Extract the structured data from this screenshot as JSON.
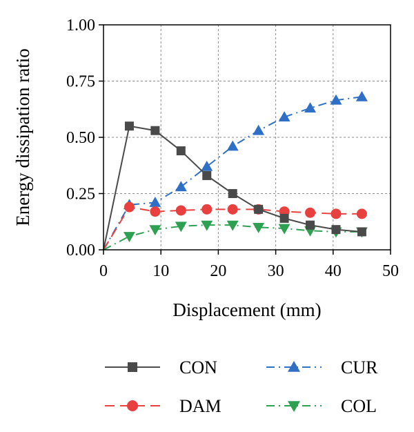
{
  "chart_data": {
    "type": "line",
    "title": "",
    "xlabel": "Displacement (mm)",
    "ylabel": "Energy dissipation ratio",
    "xlim": [
      0,
      50
    ],
    "ylim": [
      0,
      1.0
    ],
    "grid": true,
    "legend_position": "bottom",
    "x_ticks": [
      "0",
      "10",
      "20",
      "30",
      "40",
      "50"
    ],
    "y_ticks": [
      "0.00",
      "0.25",
      "0.50",
      "0.75",
      "1.00"
    ],
    "series": [
      {
        "name": "CON",
        "color": "#4a4a4a",
        "marker": "square",
        "line_style": "solid",
        "x": [
          0,
          4.5,
          9,
          13.5,
          18,
          22.5,
          27,
          31.5,
          36,
          40.5,
          45
        ],
        "y": [
          0,
          0.55,
          0.53,
          0.44,
          0.33,
          0.25,
          0.18,
          0.14,
          0.11,
          0.09,
          0.08
        ]
      },
      {
        "name": "CUR",
        "color": "#2f6fc6",
        "marker": "triangle-up",
        "line_style": "dashdot",
        "x": [
          0,
          4.5,
          9,
          13.5,
          18,
          22.5,
          27,
          31.5,
          36,
          40.5,
          45
        ],
        "y": [
          0,
          0.2,
          0.21,
          0.28,
          0.37,
          0.46,
          0.53,
          0.59,
          0.63,
          0.665,
          0.68
        ]
      },
      {
        "name": "DAM",
        "color": "#e8403f",
        "marker": "circle",
        "line_style": "dashed",
        "x": [
          0,
          4.5,
          9,
          13.5,
          18,
          22.5,
          27,
          31.5,
          36,
          40.5,
          45
        ],
        "y": [
          0,
          0.19,
          0.17,
          0.175,
          0.18,
          0.18,
          0.18,
          0.17,
          0.165,
          0.16,
          0.16
        ]
      },
      {
        "name": "COL",
        "color": "#2ea052",
        "marker": "triangle-down",
        "line_style": "dashdot",
        "x": [
          0,
          4.5,
          9,
          13.5,
          18,
          22.5,
          27,
          31.5,
          36,
          40.5,
          45
        ],
        "y": [
          0,
          0.06,
          0.09,
          0.105,
          0.11,
          0.11,
          0.1,
          0.095,
          0.085,
          0.08,
          0.08
        ]
      }
    ]
  }
}
